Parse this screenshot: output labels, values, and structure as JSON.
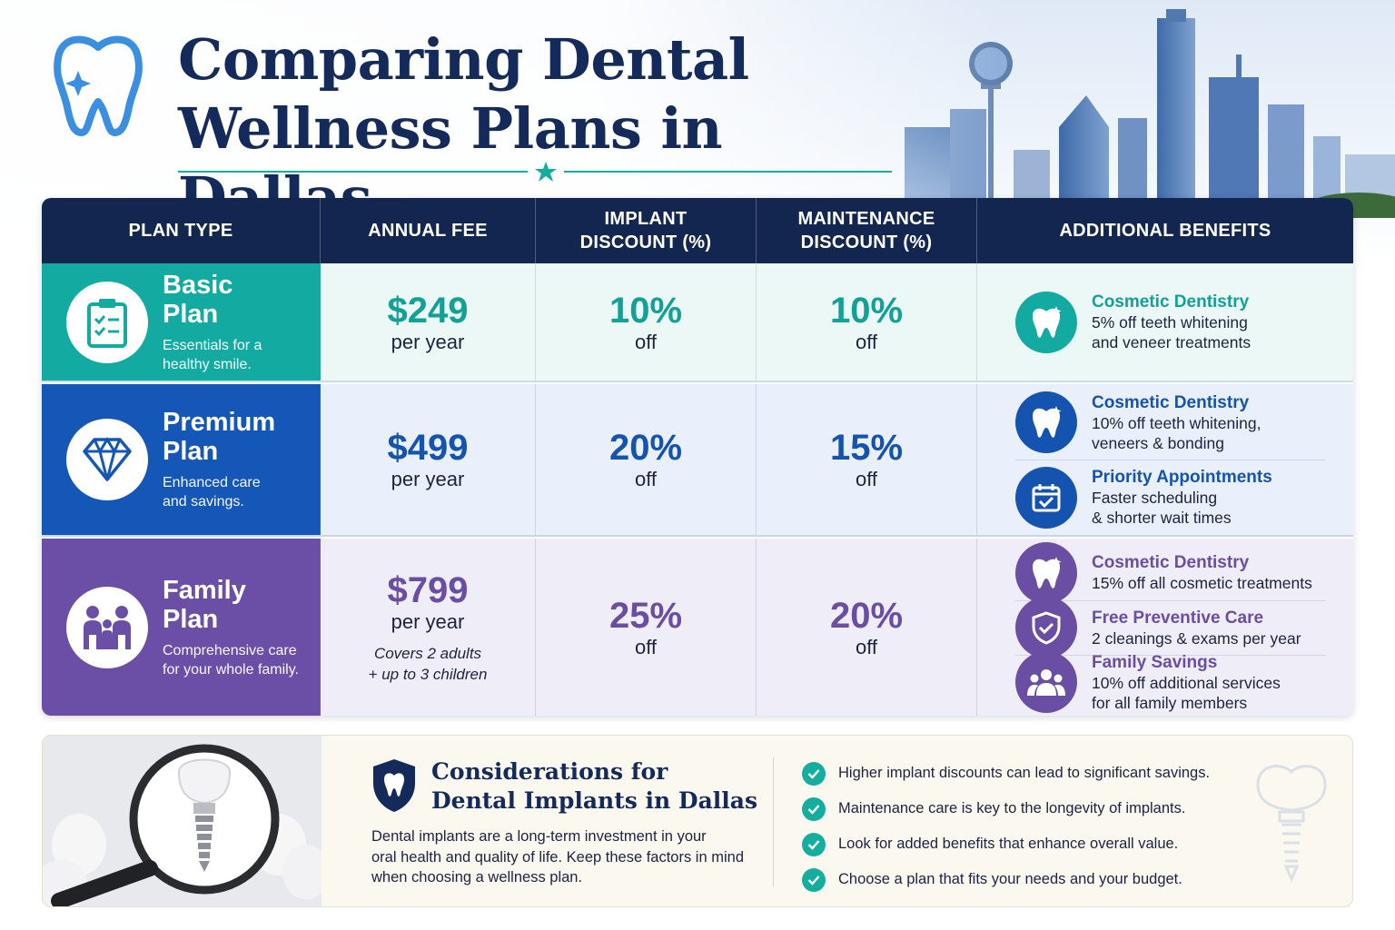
{
  "title_line1": "Comparing Dental",
  "title_line2": "Wellness Plans in Dallas",
  "colors": {
    "navy": "#12264f",
    "basic": "#13aba1",
    "premium": "#1557b7",
    "family": "#6b4fa6",
    "check": "#14ae9f"
  },
  "headers": {
    "plan_type": "PLAN TYPE",
    "annual_fee": "ANNUAL FEE",
    "implant_l1": "IMPLANT",
    "implant_l2": "DISCOUNT (%)",
    "maint_l1": "MAINTENANCE",
    "maint_l2": "DISCOUNT (%)",
    "benefits": "ADDITIONAL BENEFITS"
  },
  "plans": [
    {
      "icon": "clipboard-checklist-icon",
      "name_l1": "Basic",
      "name_l2": "Plan",
      "desc_l1": "Essentials for a",
      "desc_l2": "healthy smile.",
      "fee": "$249",
      "fee_unit": "per year",
      "implant": "10%",
      "implant_unit": "off",
      "maintenance": "10%",
      "maintenance_unit": "off",
      "benefits": [
        {
          "icon": "tooth-sparkle-icon",
          "title": "Cosmetic Dentistry",
          "desc_l1": "5% off teeth whitening",
          "desc_l2": "and veneer treatments"
        }
      ]
    },
    {
      "icon": "diamond-icon",
      "name_l1": "Premium",
      "name_l2": "Plan",
      "desc_l1": "Enhanced care",
      "desc_l2": "and savings.",
      "fee": "$499",
      "fee_unit": "per year",
      "implant": "20%",
      "implant_unit": "off",
      "maintenance": "15%",
      "maintenance_unit": "off",
      "benefits": [
        {
          "icon": "tooth-sparkle-icon",
          "title": "Cosmetic Dentistry",
          "desc_l1": "10% off teeth whitening,",
          "desc_l2": "veneers & bonding"
        },
        {
          "icon": "calendar-check-icon",
          "title": "Priority Appointments",
          "desc_l1": "Faster scheduling",
          "desc_l2": "& shorter wait times"
        }
      ]
    },
    {
      "icon": "family-icon",
      "name_l1": "Family",
      "name_l2": "Plan",
      "desc_l1": "Comprehensive care",
      "desc_l2": "for your whole family.",
      "fee": "$799",
      "fee_unit": "per year",
      "note_l1": "Covers 2 adults",
      "note_l2": "+ up to 3 children",
      "implant": "25%",
      "implant_unit": "off",
      "maintenance": "20%",
      "maintenance_unit": "off",
      "benefits": [
        {
          "icon": "tooth-sparkle-icon",
          "title": "Cosmetic Dentistry",
          "desc_l1": "15% off all cosmetic treatments"
        },
        {
          "icon": "shield-check-icon",
          "title": "Free Preventive Care",
          "desc_l1": "2 cleanings & exams per year"
        },
        {
          "icon": "group-icon",
          "title": "Family Savings",
          "desc_l1": "10% off additional services",
          "desc_l2": "for all family members"
        }
      ]
    }
  ],
  "considerations": {
    "icon": "shield-tooth-icon",
    "title_l1": "Considerations for",
    "title_l2": "Dental Implants in Dallas",
    "text_l1": "Dental implants are a long-term investment in your",
    "text_l2": "oral health and quality of life. Keep these factors in mind",
    "text_l3": "when choosing a wellness plan.",
    "checks": [
      "Higher implant discounts can lead to significant savings.",
      "Maintenance care is key to the longevity of implants.",
      "Look for added benefits that enhance overall value.",
      "Choose a plan that fits your needs and your budget."
    ]
  }
}
